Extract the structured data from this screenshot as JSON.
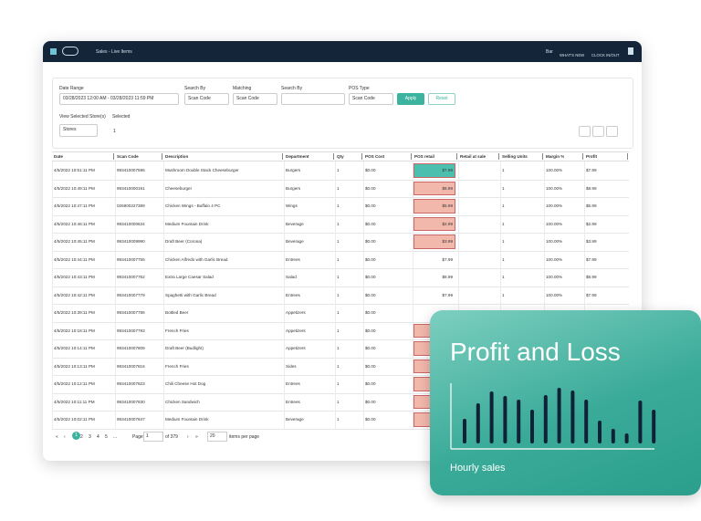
{
  "header": {
    "app_title": "Sales - Live Items",
    "store": "Bar",
    "whats_new": "WHAT'S NEW",
    "clock": "CLOCK IN/OUT"
  },
  "filters": {
    "date_range_label": "Date Range",
    "date_range": "03/28/2023 12:00 AM - 03/28/2023 11:59 PM",
    "search_by_label": "Search By",
    "search_by": "Scan Code",
    "matching_label": "Matching",
    "matching": "Scan Code",
    "search_label": "Search By",
    "pos_type_label": "POS Type",
    "pos_type": "Scan Code",
    "apply": "Apply",
    "reset": "Reset",
    "stores_label": "View Selected Store(s)",
    "selected_label": "Selected",
    "stores": "Stores",
    "selected": "1"
  },
  "table": {
    "columns": [
      "Date",
      "Scan Code",
      "Description",
      "Department",
      "Qty",
      "POS Cost",
      "POS retail",
      "Retail at sale",
      "Selling Units",
      "Margin %",
      "Profit"
    ],
    "rows": [
      {
        "date": "4/5/2022 10:51:11 PM",
        "scan_code": "993410007595",
        "description": "Mushroom Double Stack Cheeseburger",
        "department": "Burgers",
        "qty": "1",
        "pos_cost": "$0.00",
        "pos_retail": "$7.99",
        "selling_units": "1",
        "margin": "100.00%",
        "profit": "$7.99"
      },
      {
        "date": "4/5/2022 10:49:11 PM",
        "scan_code": "993410000191",
        "description": "Cheeseburger",
        "department": "Burgers",
        "qty": "1",
        "pos_cost": "$0.00",
        "pos_retail": "$8.99",
        "selling_units": "1",
        "margin": "100.00%",
        "profit": "$8.99"
      },
      {
        "date": "4/5/2022 10:47:11 PM",
        "scan_code": "025900227389",
        "description": "Chicken Wings - Buffalo 4 PC",
        "department": "Wings",
        "qty": "1",
        "pos_cost": "$0.00",
        "pos_retail": "$5.99",
        "selling_units": "1",
        "margin": "100.00%",
        "profit": "$5.99"
      },
      {
        "date": "4/5/2022 10:46:11 PM",
        "scan_code": "993410000634",
        "description": "Medium Fountain Drink",
        "department": "Beverage",
        "qty": "1",
        "pos_cost": "$0.00",
        "pos_retail": "$2.99",
        "selling_units": "1",
        "margin": "100.00%",
        "profit": "$2.99"
      },
      {
        "date": "4/5/2022 10:45:11 PM",
        "scan_code": "993410009990",
        "description": "Draft Beer (Corona)",
        "department": "Beverage",
        "qty": "1",
        "pos_cost": "$0.00",
        "pos_retail": "$3.99",
        "selling_units": "1",
        "margin": "100.00%",
        "profit": "$3.99"
      },
      {
        "date": "4/5/2022 10:44:11 PM",
        "scan_code": "993410007755",
        "description": "Chicken Alfredo with Garlic Bread",
        "department": "Entrees",
        "qty": "1",
        "pos_cost": "$0.00",
        "pos_retail": "$7.99",
        "selling_units": "1",
        "margin": "100.00%",
        "profit": "$7.99"
      },
      {
        "date": "4/5/2022 10:43:11 PM",
        "scan_code": "993410007762",
        "description": "Extra Large Caesar Salad",
        "department": "Salad",
        "qty": "1",
        "pos_cost": "$0.00",
        "pos_retail": "$8.99",
        "selling_units": "1",
        "margin": "100.00%",
        "profit": "$8.99"
      },
      {
        "date": "4/5/2022 10:42:11 PM",
        "scan_code": "993410007779",
        "description": "Spaghetti with Garlic Bread",
        "department": "Entrees",
        "qty": "1",
        "pos_cost": "$0.00",
        "pos_retail": "$7.99",
        "selling_units": "1",
        "margin": "100.00%",
        "profit": "$7.99"
      },
      {
        "date": "4/5/2022 10:39:11 PM",
        "scan_code": "993410007786",
        "description": "Bottled Beer",
        "department": "Appetizers",
        "qty": "1",
        "pos_cost": "$0.00"
      },
      {
        "date": "4/5/2022 10:18:11 PM",
        "scan_code": "993410007793",
        "description": "French Fries",
        "department": "Appetizers",
        "qty": "1",
        "pos_cost": "$0.00"
      },
      {
        "date": "4/5/2022 10:14:11 PM",
        "scan_code": "993410007809",
        "description": "Draft Beer (Budlight)",
        "department": "Appetizers",
        "qty": "1",
        "pos_cost": "$0.00"
      },
      {
        "date": "4/5/2022 10:13:11 PM",
        "scan_code": "993410007816",
        "description": "French Fries",
        "department": "Sides",
        "qty": "1",
        "pos_cost": "$0.00"
      },
      {
        "date": "4/5/2022 10:12:11 PM",
        "scan_code": "993410007823",
        "description": "Chili Cheese Hot Dog",
        "department": "Entrees",
        "qty": "1",
        "pos_cost": "$0.00"
      },
      {
        "date": "4/5/2022 10:11:11 PM",
        "scan_code": "993410007830",
        "description": "Chicken Sandwich",
        "department": "Entrees",
        "qty": "1",
        "pos_cost": "$0.00"
      },
      {
        "date": "4/5/2022 10:02:11 PM",
        "scan_code": "993410007847",
        "description": "Medium Fountain Drink",
        "department": "Beverage",
        "qty": "1",
        "pos_cost": "$0.00"
      }
    ],
    "retail_highlight": [
      "#4dbfae",
      "#f2b8ac",
      "#f2b8ac",
      "#f2b8ac",
      "#f2b8ac",
      null,
      null,
      null,
      null,
      "#f2b8ac",
      "#f2b8ac",
      "#f2b8ac",
      "#f2b8ac",
      "#f2b8ac",
      "#f2b8ac"
    ]
  },
  "pagination": {
    "pages": [
      "1",
      "2",
      "3",
      "4",
      "5",
      "..."
    ],
    "page_label": "Page",
    "page": "1",
    "of": "of 379",
    "per_page": "20",
    "per_page_label": "items per page"
  },
  "card": {
    "title": "Profit and Loss",
    "subtitle": "Hourly sales"
  },
  "chart_data": {
    "type": "bar",
    "values": [
      27,
      44,
      57,
      52,
      48,
      37,
      53,
      61,
      58,
      48,
      25,
      16,
      11,
      47,
      37
    ],
    "color": "#0f2238"
  }
}
